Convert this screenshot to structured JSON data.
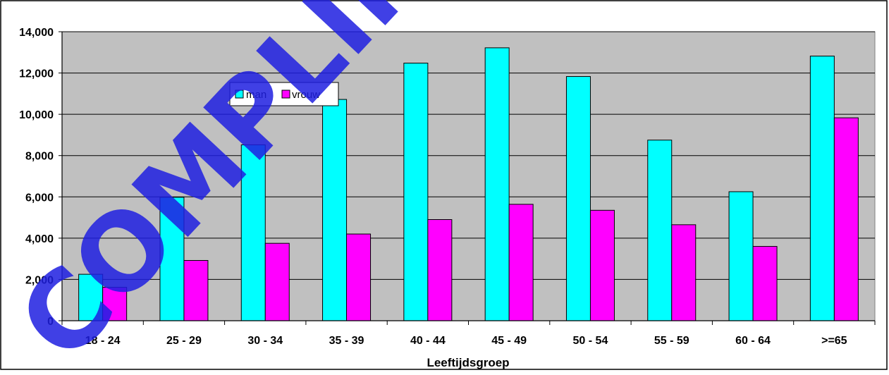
{
  "chart_data": {
    "type": "bar",
    "title": "",
    "xlabel": "Leeftijdsgroep",
    "ylabel": "",
    "ylim": [
      0,
      14000
    ],
    "yticks": [
      "0",
      "2,000",
      "4,000",
      "6,000",
      "8,000",
      "10,000",
      "12,000",
      "14,000"
    ],
    "ytick_values": [
      0,
      2000,
      4000,
      6000,
      8000,
      10000,
      12000,
      14000
    ],
    "categories": [
      "18 - 24",
      "25 - 29",
      "30 - 34",
      "35 - 39",
      "40 - 44",
      "45 - 49",
      "50 - 54",
      "55 - 59",
      "60 - 64",
      ">=65"
    ],
    "series": [
      {
        "name": "man",
        "color": "#00FFFF",
        "values": [
          2250,
          5980,
          8520,
          10720,
          12480,
          13220,
          11830,
          8750,
          6250,
          12820
        ]
      },
      {
        "name": "vrouw",
        "color": "#FF00FF",
        "values": [
          1620,
          2920,
          3750,
          4200,
          4900,
          5640,
          5350,
          4650,
          3600,
          9830
        ]
      }
    ],
    "grid": true,
    "plot_background": "#C0C0C0",
    "legend_position": "upper-left inside plot"
  },
  "watermark": {
    "text": "COMPLIMENTARY",
    "color": "#1F1FE0"
  }
}
